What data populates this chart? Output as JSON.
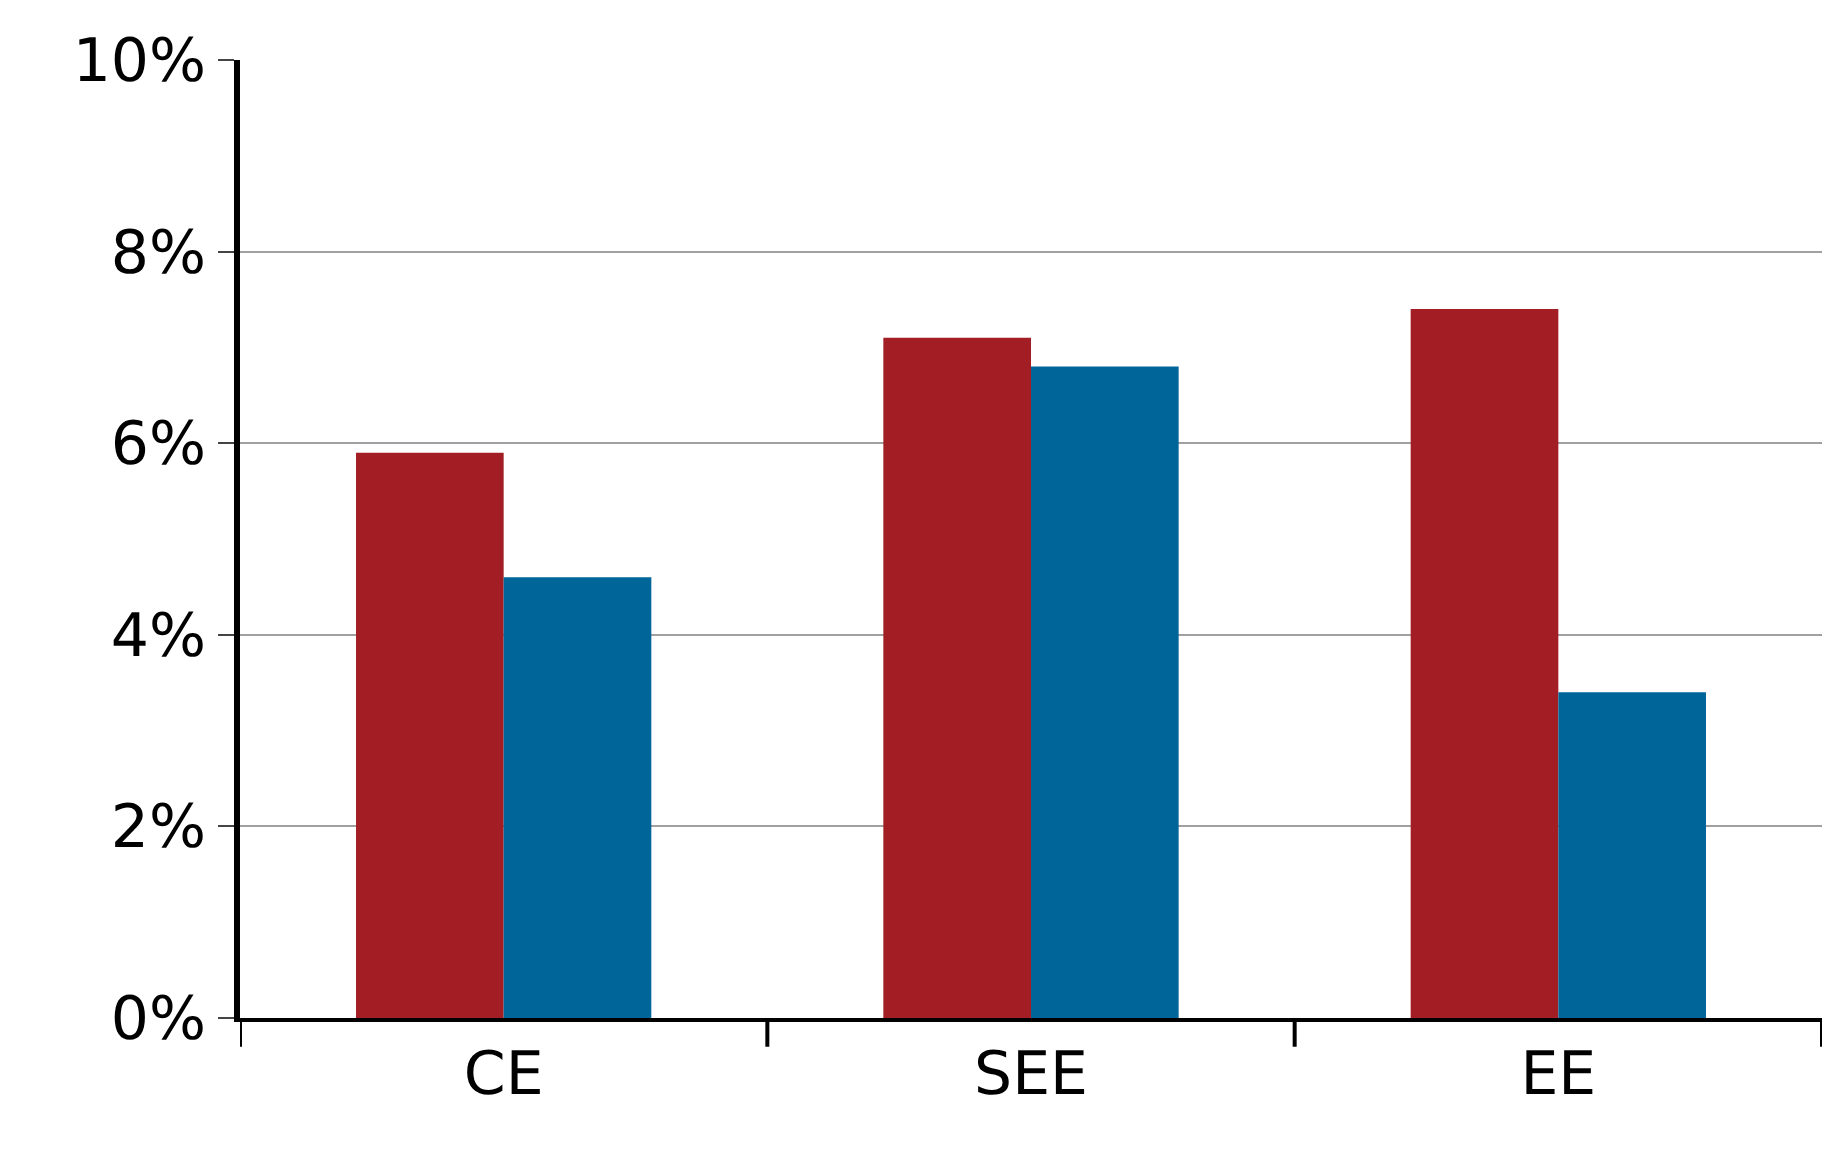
{
  "chart_data": {
    "type": "bar",
    "categories": [
      "CE",
      "SEE",
      "EE"
    ],
    "series": [
      {
        "color": "#a21d24",
        "values": [
          5.9,
          7.1,
          7.4
        ]
      },
      {
        "color": "#00669a",
        "values": [
          4.6,
          6.8,
          3.4
        ]
      }
    ],
    "ylim": [
      0,
      10
    ],
    "yticks": [
      {
        "value": 0,
        "label": "0%"
      },
      {
        "value": 2,
        "label": "2%"
      },
      {
        "value": 4,
        "label": "4%"
      },
      {
        "value": 6,
        "label": "6%"
      },
      {
        "value": 8,
        "label": "8%"
      },
      {
        "value": 10,
        "label": "10%"
      }
    ],
    "grid": "y"
  }
}
